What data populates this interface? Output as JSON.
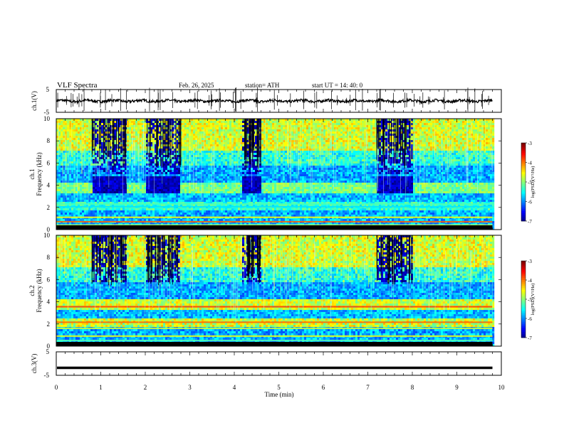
{
  "header": {
    "title": "VLF  Spectra",
    "date": "Feb. 26, 2025",
    "station": "station= ATH",
    "start_ut": "start  UT  =   14: 40: 0"
  },
  "chart_data": [
    {
      "type": "line",
      "name": "ch1-waveform",
      "ylabel": "ch.1(V)",
      "ylim": [
        -5,
        5
      ],
      "yticks": [
        "5",
        "-5"
      ],
      "xlim": [
        0,
        10
      ],
      "trace_level": 0
    },
    {
      "type": "heatmap",
      "name": "ch1-spectrogram",
      "ylabel": "ch.1\nFrequency  (kHz)",
      "ylim": [
        0,
        10
      ],
      "yticks": [
        "0",
        "2",
        "4",
        "6",
        "8",
        "10"
      ],
      "xlim": [
        0,
        10
      ],
      "data_end_min": 9.8,
      "colorbar": {
        "label": "log(PSD)(V²/Hz)",
        "range": [
          -7,
          -3
        ],
        "ticks": [
          "-3",
          "-4",
          "-5",
          "-6",
          "-7"
        ]
      },
      "quiet_windows_min": [
        [
          0.8,
          1.6
        ],
        [
          2.0,
          2.8
        ],
        [
          4.2,
          4.6
        ],
        [
          7.2,
          8.0
        ]
      ]
    },
    {
      "type": "heatmap",
      "name": "ch2-spectrogram",
      "ylabel": "ch.2\nFrequency  (kHz)",
      "ylim": [
        0,
        10
      ],
      "yticks": [
        "0",
        "2",
        "4",
        "6",
        "8",
        "10"
      ],
      "xlim": [
        0,
        10
      ],
      "data_end_min": 9.8,
      "colorbar": {
        "label": "log(PSD)(V²/Hz)",
        "range": [
          -7,
          -3
        ],
        "ticks": [
          "-3",
          "-4",
          "-5",
          "-6",
          "-7"
        ]
      },
      "quiet_windows_min": [
        [
          0.8,
          1.6
        ],
        [
          2.0,
          2.8
        ],
        [
          4.2,
          4.6
        ],
        [
          7.2,
          8.0
        ]
      ]
    },
    {
      "type": "line",
      "name": "ch3-waveform",
      "ylabel": "ch.3(V)",
      "ylim": [
        -5,
        5
      ],
      "yticks": [
        "5",
        "-5"
      ],
      "xlim": [
        0,
        10
      ],
      "xlabel": "Time  (min)",
      "xticks": [
        "0",
        "1",
        "2",
        "3",
        "4",
        "5",
        "6",
        "7",
        "8",
        "9",
        "10"
      ],
      "trace_level": -1.8
    }
  ]
}
